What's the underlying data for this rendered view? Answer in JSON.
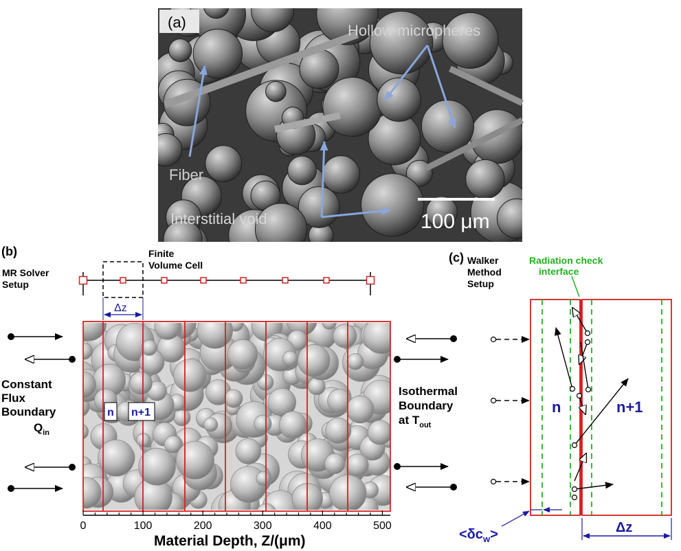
{
  "panel_a": {
    "label": "(a)",
    "fiber": "Fiber",
    "hollow": "Hollow micropheres",
    "void": "Interstitial void",
    "scale": "100 μm"
  },
  "panel_b": {
    "label": "(b)",
    "solver_line1": "MR Solver",
    "solver_line2": "Setup",
    "fv_line1": "Finite",
    "fv_line2": "Volume Cell",
    "dz": "Δz",
    "cell_n": "n",
    "cell_n1": "n+1",
    "left_bc_1": "Constant",
    "left_bc_2": "Flux",
    "left_bc_3": "Boundary",
    "left_bc_q": "Q",
    "left_bc_q_sub": "in",
    "right_bc_1": "Isothermal",
    "right_bc_2": "Boundary",
    "right_bc_3": "at T",
    "right_bc_sub": "out",
    "xlabel": "Material Depth, Z/(μm)",
    "ticks": [
      "0",
      "100",
      "200",
      "300",
      "400",
      "500"
    ]
  },
  "panel_c": {
    "label": "(c)",
    "walker_1": "Walker",
    "walker_2": "Method",
    "walker_3": "Setup",
    "rad_1": "Radiation check",
    "rad_2": "interface",
    "cell_n": "n",
    "cell_n1": "n+1",
    "dz": "Δz",
    "dcw": "<δc",
    "dcw_sub": "w",
    "dcw_end": ">"
  },
  "colors": {
    "red": "#d42020",
    "green": "#22b022",
    "blue": "#1a1aa0",
    "arrow_blue": "#8aa6dc"
  }
}
